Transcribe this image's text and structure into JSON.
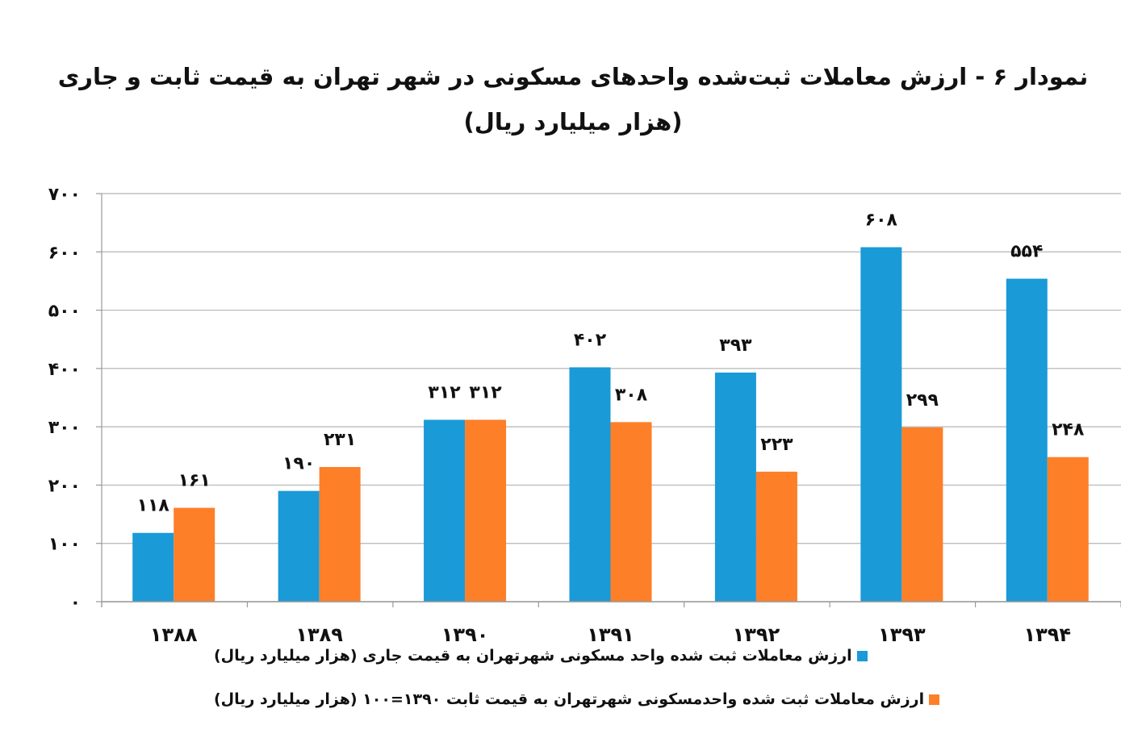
{
  "chart_data": {
    "type": "bar",
    "title": "نمودار ۶  - ارزش معاملات ثبت‌شده واحدهای مسکونی در شهر تهران به قیمت ثابت و جاری",
    "subtitle": "(هزار میلیارد ریال)",
    "categories": [
      "۱۳۸۸",
      "۱۳۸۹",
      "۱۳۹۰",
      "۱۳۹۱",
      "۱۳۹۲",
      "۱۳۹۳",
      "۱۳۹۴"
    ],
    "series": [
      {
        "name": "ارزش معاملات ثبت شده واحد مسکونی شهرتهران به قیمت جاری (هزار میلیارد ریال)",
        "color": "#1a9ad7",
        "values": [
          118,
          190,
          312,
          402,
          393,
          608,
          554
        ],
        "labels": [
          "۱۱۸",
          "۱۹۰",
          "۳۱۲",
          "۴۰۲",
          "۳۹۳",
          "۶۰۸",
          "۵۵۴"
        ]
      },
      {
        "name": "ارزش معاملات ثبت شده واحدمسکونی شهرتهران به قیمت ثابت ۱۳۹۰=۱۰۰ (هزار میلیارد ریال)",
        "color": "#fd7f28",
        "values": [
          161,
          231,
          312,
          308,
          223,
          299,
          248
        ],
        "labels": [
          "۱۶۱",
          "۲۳۱",
          "۳۱۲",
          "۳۰۸",
          "۲۲۳",
          "۲۹۹",
          "۲۴۸"
        ]
      }
    ],
    "yticks": [
      0,
      100,
      200,
      300,
      400,
      500,
      600,
      700
    ],
    "ytick_labels": [
      "۰",
      "۱۰۰",
      "۲۰۰",
      "۳۰۰",
      "۴۰۰",
      "۵۰۰",
      "۶۰۰",
      "۷۰۰"
    ],
    "ylim": [
      0,
      700
    ],
    "grid": true,
    "legend_position": "bottom",
    "xlabel": "",
    "ylabel": ""
  }
}
